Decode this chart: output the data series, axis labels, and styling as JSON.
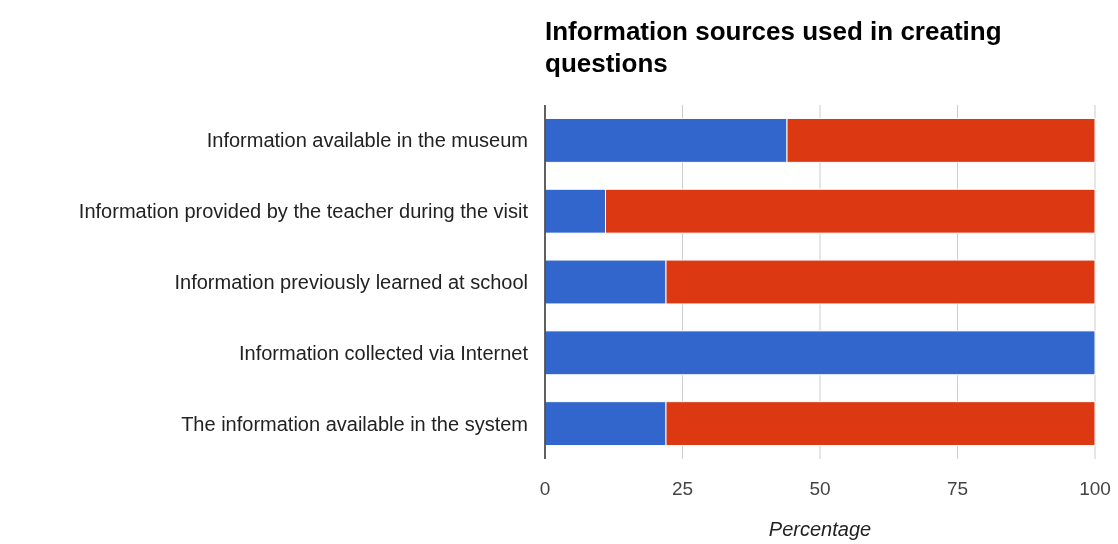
{
  "chart_data": {
    "type": "bar",
    "orientation": "horizontal",
    "stacked": true,
    "title": "Information sources used in creating questions",
    "xlabel": "Percentage",
    "categories": [
      "Information available in the museum",
      "Information provided by the teacher during the visit",
      "Information previously learned at school",
      "Information collected via Internet",
      "The information available in the system"
    ],
    "series": [
      {
        "color": "#3366cc",
        "values": [
          44,
          11,
          22,
          100,
          22
        ]
      },
      {
        "color": "#dc3912",
        "values": [
          56,
          89,
          78,
          0,
          78
        ]
      }
    ],
    "xlim": [
      0,
      100
    ],
    "xticks": [
      0,
      25,
      50,
      75,
      100
    ],
    "grid": "x"
  }
}
